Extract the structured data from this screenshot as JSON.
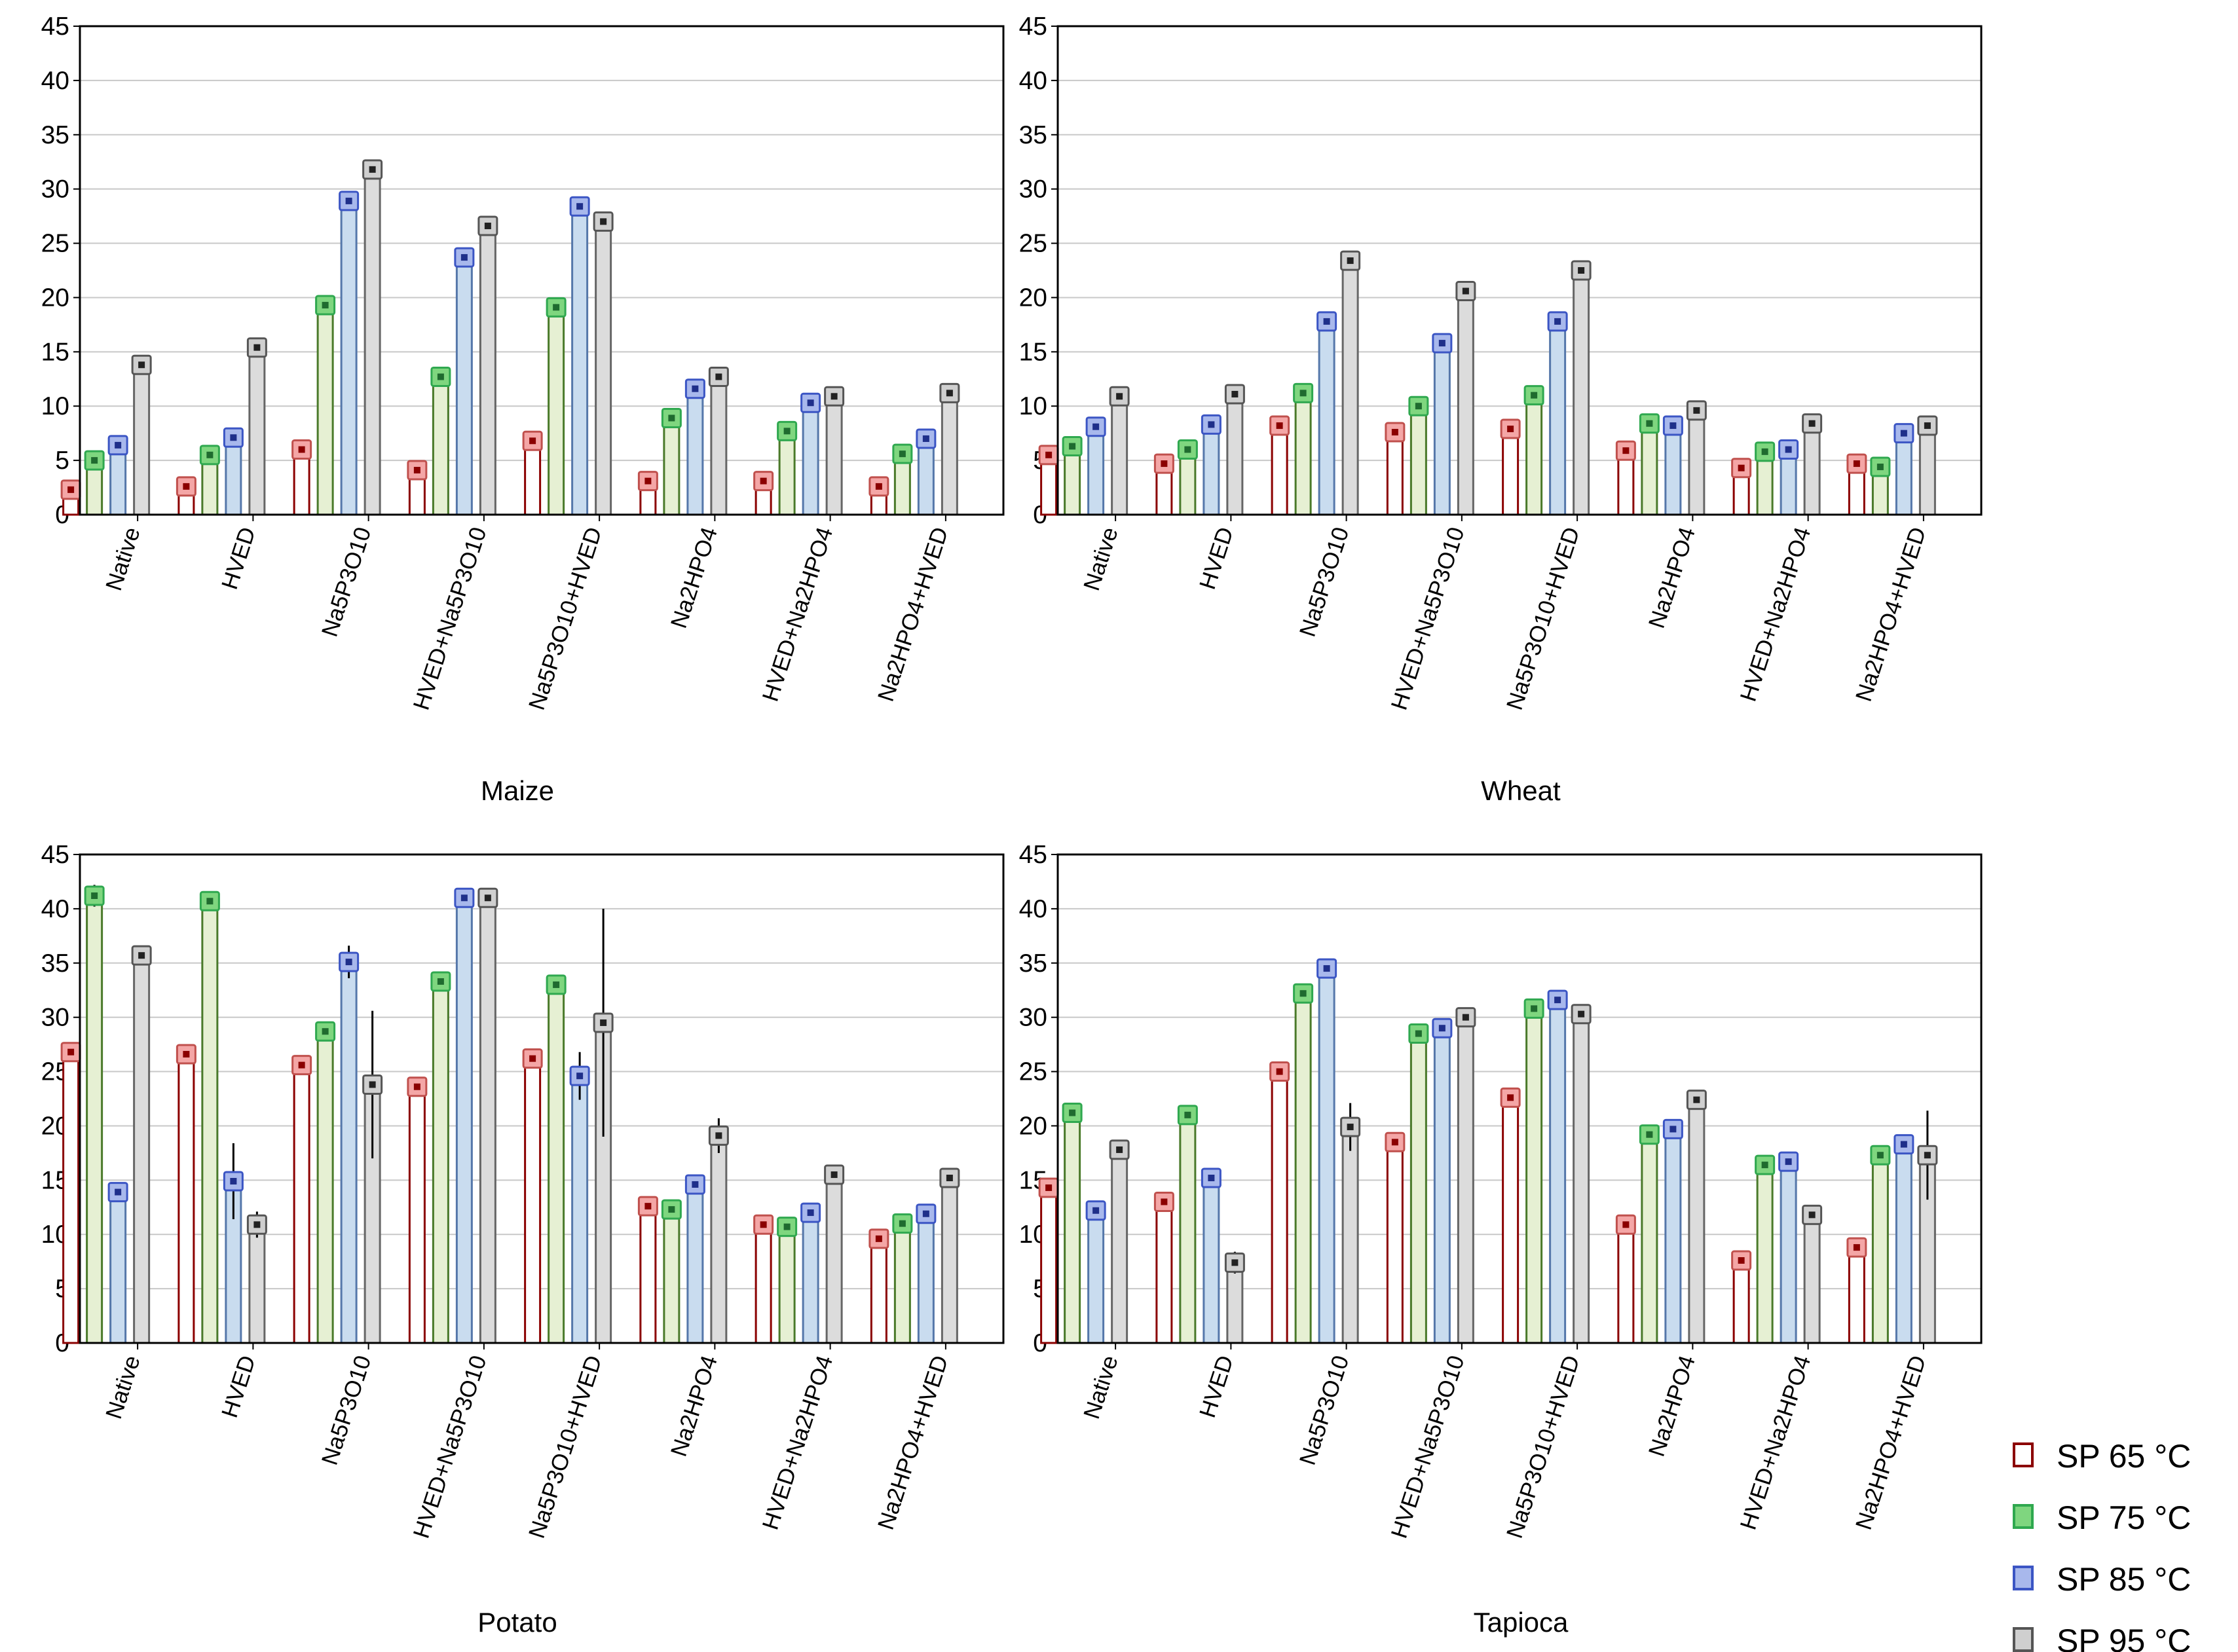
{
  "chart_data": [
    {
      "type": "bar",
      "title": "Maize",
      "categories": [
        "Native",
        "HVED",
        "Na5P3O10",
        "HVED+Na5P3O10",
        "Na5P3O10+HVED",
        "Na2HPO4",
        "HVED+Na2HPO4",
        "Na2HPO4+HVED"
      ],
      "ylim": [
        0,
        45
      ],
      "yticks": [
        0,
        5,
        10,
        15,
        20,
        25,
        30,
        35,
        40,
        45
      ],
      "series": [
        {
          "name": "SP 65 °C",
          "values": [
            2.3,
            2.6,
            6.0,
            4.1,
            6.8,
            3.1,
            3.1,
            2.6
          ],
          "errors": [
            0.2,
            0.2,
            0.3,
            0.3,
            0.4,
            0.2,
            0.2,
            0.2
          ]
        },
        {
          "name": "SP 75 °C",
          "values": [
            5.0,
            5.5,
            19.3,
            12.7,
            19.1,
            8.9,
            7.7,
            5.6
          ],
          "errors": [
            0.3,
            0.3,
            0.4,
            0.4,
            0.5,
            0.4,
            0.3,
            0.3
          ]
        },
        {
          "name": "SP 85 °C",
          "values": [
            6.4,
            7.1,
            28.9,
            23.7,
            28.4,
            11.6,
            10.3,
            7.0
          ],
          "errors": [
            0.3,
            0.4,
            0.5,
            0.5,
            0.5,
            0.6,
            0.4,
            0.4
          ]
        },
        {
          "name": "SP 95 °C",
          "values": [
            13.8,
            15.4,
            31.8,
            26.6,
            27.0,
            12.7,
            10.9,
            11.2
          ],
          "errors": [
            0.4,
            0.4,
            0.5,
            0.4,
            0.4,
            0.4,
            0.4,
            0.4
          ]
        }
      ]
    },
    {
      "type": "bar",
      "title": "Wheat",
      "categories": [
        "Native",
        "HVED",
        "Na5P3O10",
        "HVED+Na5P3O10",
        "Na5P3O10+HVED",
        "Na2HPO4",
        "HVED+Na2HPO4",
        "Na2HPO4+HVED"
      ],
      "ylim": [
        0,
        45
      ],
      "yticks": [
        0,
        5,
        10,
        15,
        20,
        25,
        30,
        35,
        40,
        45
      ],
      "series": [
        {
          "name": "SP 65 °C",
          "values": [
            5.5,
            4.7,
            8.2,
            7.6,
            7.9,
            5.9,
            4.3,
            4.7
          ],
          "errors": [
            0.3,
            0.3,
            0.4,
            0.4,
            0.4,
            0.3,
            0.3,
            0.3
          ]
        },
        {
          "name": "SP 75 °C",
          "values": [
            6.3,
            6.0,
            11.2,
            10.0,
            11.0,
            8.4,
            5.8,
            4.4
          ],
          "errors": [
            0.3,
            0.3,
            0.4,
            0.4,
            0.4,
            0.4,
            0.3,
            0.3
          ]
        },
        {
          "name": "SP 85 °C",
          "values": [
            8.1,
            8.3,
            17.8,
            15.8,
            17.8,
            8.2,
            6.0,
            7.5
          ],
          "errors": [
            0.4,
            0.4,
            0.4,
            0.4,
            0.4,
            0.4,
            0.3,
            0.3
          ]
        },
        {
          "name": "SP 95 °C",
          "values": [
            10.9,
            11.1,
            23.4,
            20.6,
            22.5,
            9.6,
            8.4,
            8.2
          ],
          "errors": [
            0.4,
            0.4,
            0.5,
            0.5,
            0.9,
            0.4,
            0.4,
            0.4
          ]
        }
      ]
    },
    {
      "type": "bar",
      "title": "Potato",
      "categories": [
        "Native",
        "HVED",
        "Na5P3O10",
        "HVED+Na5P3O10",
        "Na5P3O10+HVED",
        "Na2HPO4",
        "HVED+Na2HPO4",
        "Na2HPO4+HVED"
      ],
      "ylim": [
        0,
        45
      ],
      "yticks": [
        0,
        5,
        10,
        15,
        20,
        25,
        30,
        35,
        40,
        45
      ],
      "series": [
        {
          "name": "SP 65 °C",
          "values": [
            26.8,
            26.6,
            25.6,
            23.6,
            26.2,
            12.6,
            10.9,
            9.6
          ],
          "errors": [
            0.5,
            0.5,
            0.5,
            0.5,
            0.5,
            0.4,
            0.4,
            0.4
          ]
        },
        {
          "name": "SP 75 °C",
          "values": [
            41.2,
            40.7,
            28.7,
            33.3,
            33.0,
            12.3,
            10.7,
            11.0
          ],
          "errors": [
            1.0,
            0.5,
            0.5,
            0.7,
            0.6,
            0.4,
            0.4,
            0.4
          ]
        },
        {
          "name": "SP 85 °C",
          "values": [
            13.9,
            14.9,
            35.1,
            41.0,
            24.6,
            14.6,
            12.0,
            11.9
          ],
          "errors": [
            0.5,
            3.5,
            1.5,
            0.5,
            2.2,
            0.4,
            0.4,
            0.4
          ]
        },
        {
          "name": "SP 95 °C",
          "values": [
            35.7,
            10.9,
            23.8,
            41.0,
            29.5,
            19.1,
            15.5,
            15.2
          ],
          "errors": [
            0.5,
            1.2,
            6.8,
            0.5,
            10.5,
            1.6,
            0.4,
            0.4
          ]
        }
      ]
    },
    {
      "type": "bar",
      "title": "Tapioca",
      "categories": [
        "Native",
        "HVED",
        "Na5P3O10",
        "HVED+Na5P3O10",
        "Na5P3O10+HVED",
        "Na2HPO4",
        "HVED+Na2HPO4",
        "Na2HPO4+HVED"
      ],
      "ylim": [
        0,
        45
      ],
      "yticks": [
        0,
        5,
        10,
        15,
        20,
        25,
        30,
        35,
        40,
        45
      ],
      "series": [
        {
          "name": "SP 65 °C",
          "values": [
            14.3,
            13.0,
            25.0,
            18.5,
            22.6,
            10.9,
            7.6,
            8.8
          ],
          "errors": [
            0.4,
            0.4,
            0.5,
            0.4,
            0.5,
            0.4,
            0.6,
            0.4
          ]
        },
        {
          "name": "SP 75 °C",
          "values": [
            21.2,
            21.0,
            32.2,
            28.5,
            30.8,
            19.2,
            16.4,
            17.3
          ],
          "errors": [
            0.4,
            0.4,
            0.5,
            0.5,
            0.5,
            0.4,
            0.4,
            0.4
          ]
        },
        {
          "name": "SP 85 °C",
          "values": [
            12.2,
            15.2,
            34.5,
            29.0,
            31.6,
            19.7,
            16.7,
            18.3
          ],
          "errors": [
            0.4,
            0.4,
            0.5,
            0.5,
            0.5,
            0.8,
            0.6,
            0.5
          ]
        },
        {
          "name": "SP 95 °C",
          "values": [
            17.8,
            7.4,
            19.9,
            30.0,
            30.3,
            22.4,
            11.8,
            17.3
          ],
          "errors": [
            0.5,
            1.0,
            2.2,
            0.5,
            0.9,
            0.5,
            0.7,
            4.1
          ]
        }
      ]
    }
  ],
  "legend": [
    {
      "label": "SP 65 °C",
      "color": "#8b0000"
    },
    {
      "label": "SP 75 °C",
      "color": "#2fa84f"
    },
    {
      "label": "SP 85 °C",
      "color": "#3b55c4"
    },
    {
      "label": "SP 95 °C",
      "color": "#555555"
    }
  ],
  "series_style": [
    {
      "edge": "#8b0000",
      "fill": "#ffffff",
      "marker_fill": "#f4a6a6",
      "marker_edge": "#c0504d",
      "dot": "#8b0000"
    },
    {
      "edge": "#4a7a2a",
      "fill": "#e6f0d3",
      "marker_fill": "#7fd67f",
      "marker_edge": "#2fa84f",
      "dot": "#1f6b2f"
    },
    {
      "edge": "#5577aa",
      "fill": "#c9dcef",
      "marker_fill": "#a8b8ec",
      "marker_edge": "#3b55c4",
      "dot": "#1f2f8a"
    },
    {
      "edge": "#666666",
      "fill": "#dcdcdc",
      "marker_fill": "#cfcfcf",
      "marker_edge": "#555555",
      "dot": "#222222"
    }
  ]
}
